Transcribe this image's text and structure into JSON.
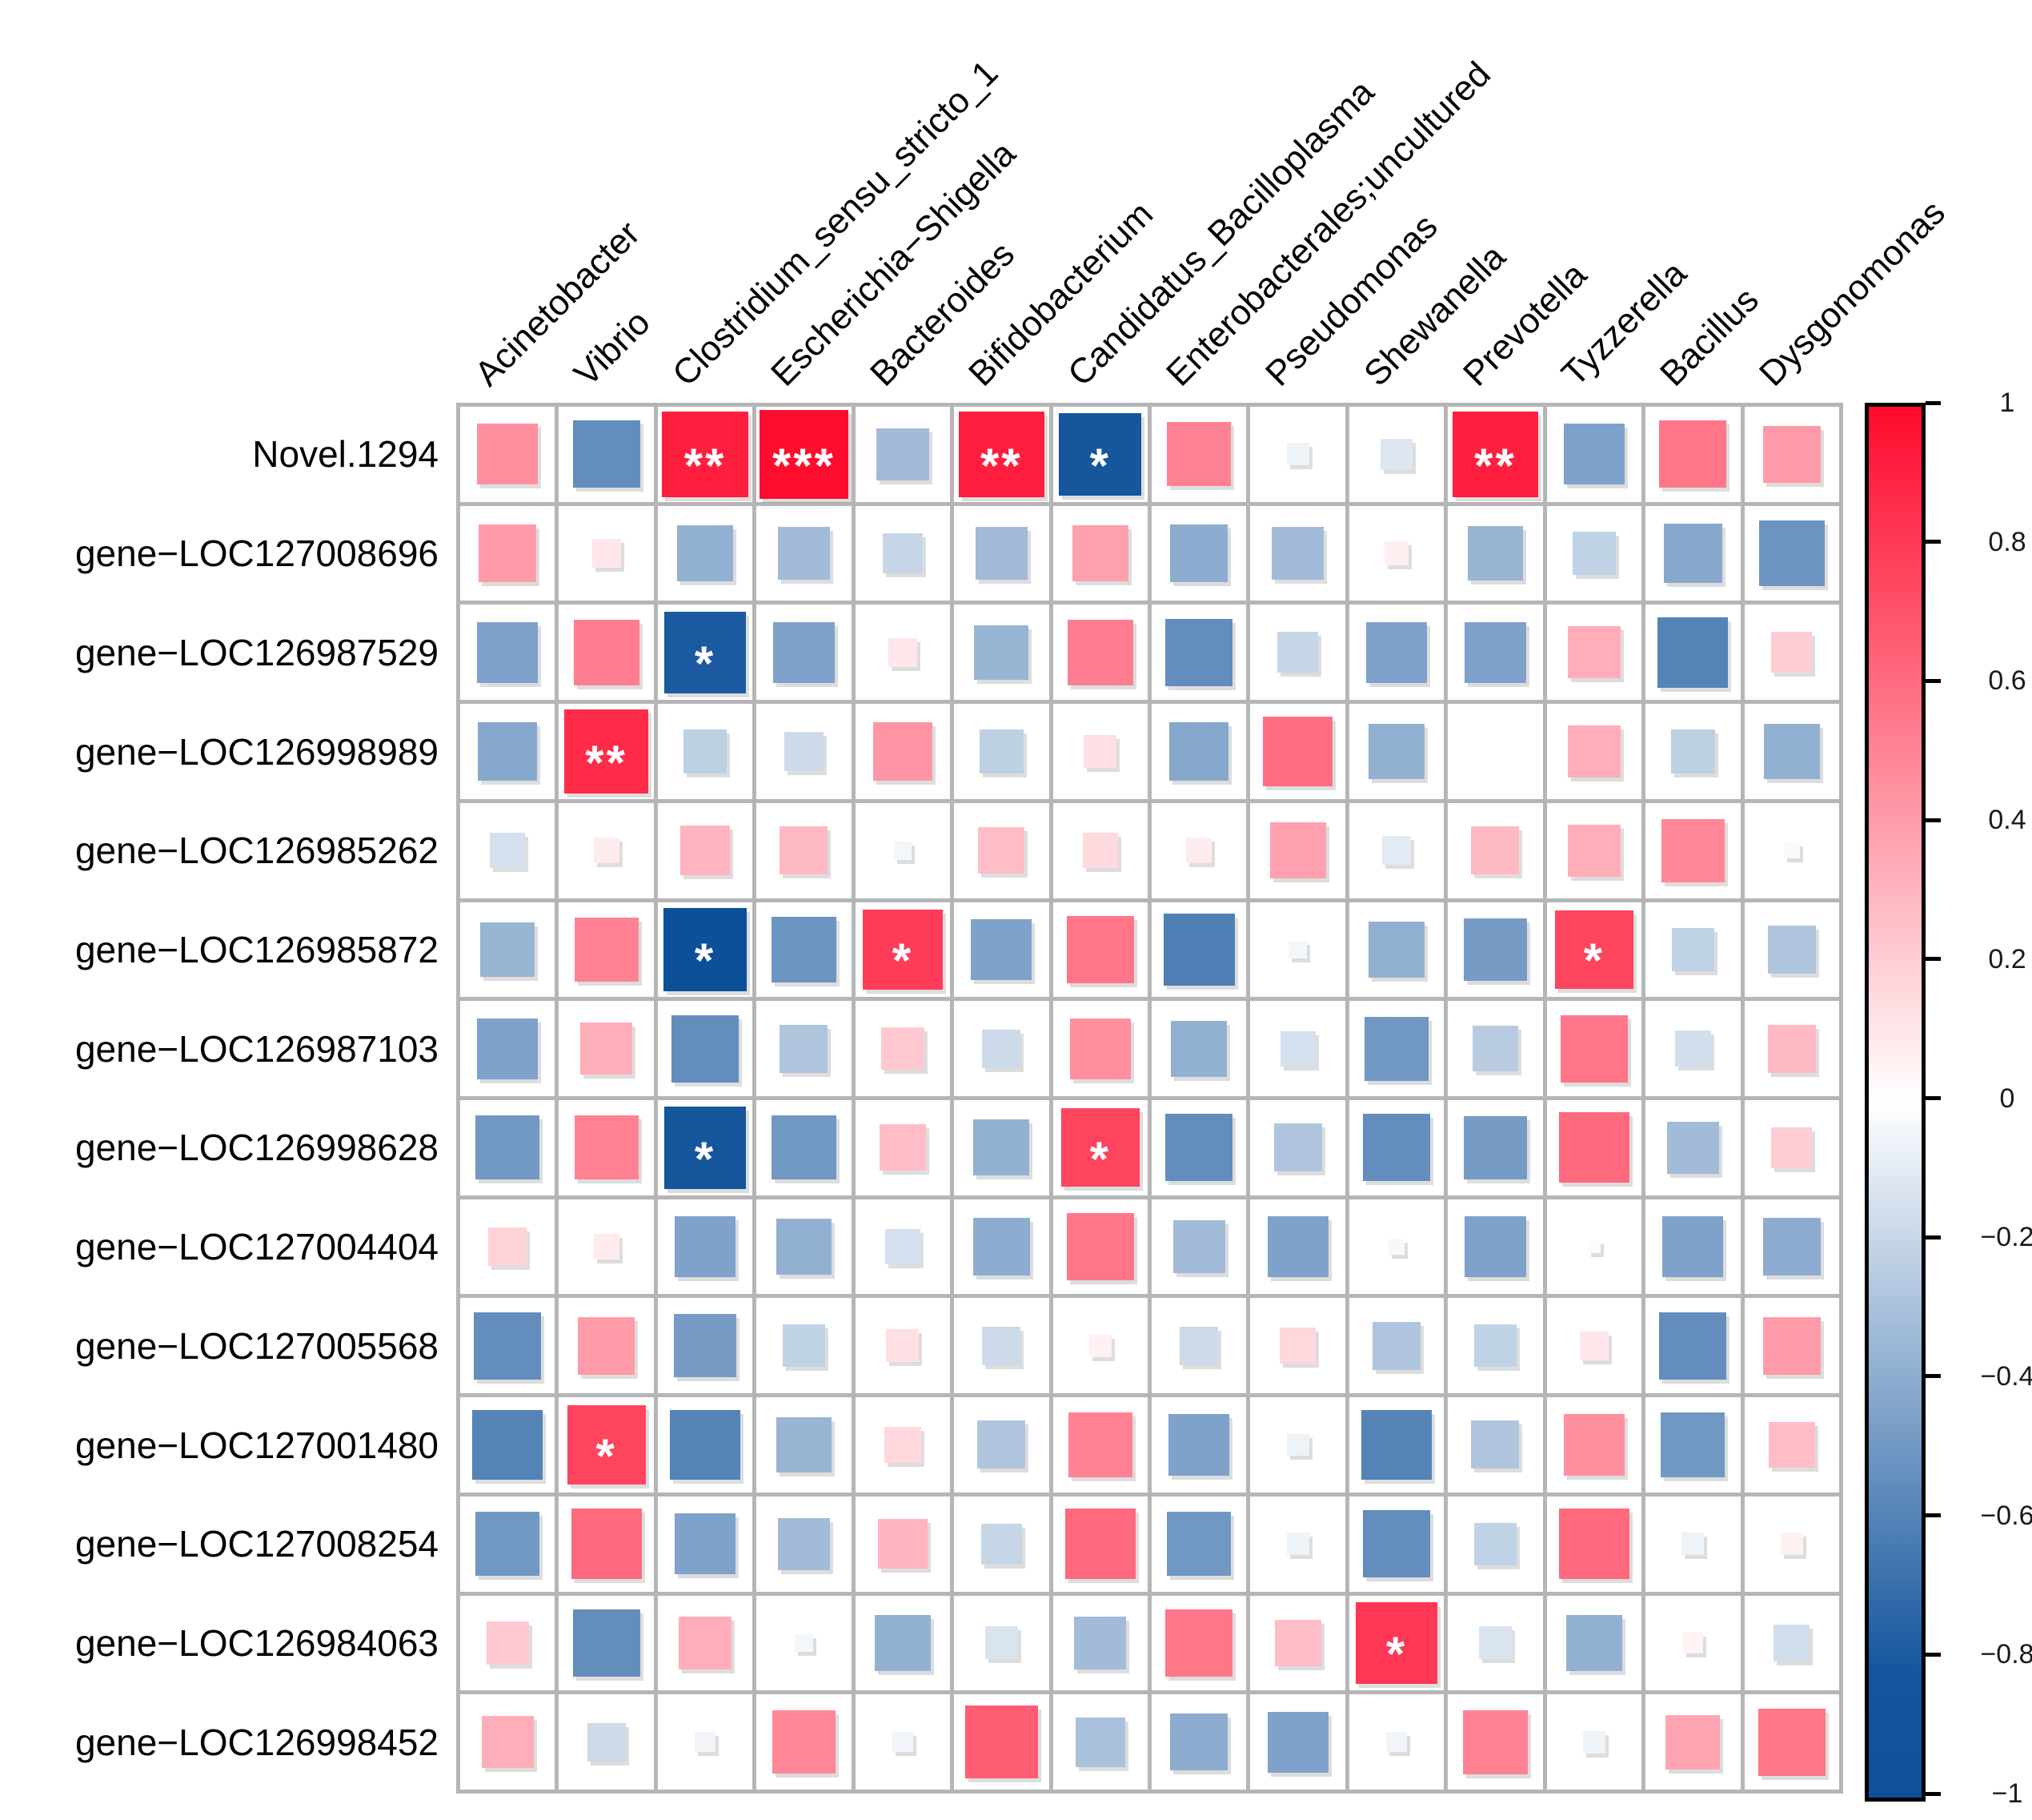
{
  "chart_data": {
    "type": "heatmap",
    "description": "Correlation matrix plot (corrplot square style): square size and color encode Spearman/Pearson correlation between genes (rows) and bacterial genera (columns); asterisks mark significance.",
    "rows": [
      "Novel.1294",
      "gene−LOC127008696",
      "gene−LOC126987529",
      "gene−LOC126998989",
      "gene−LOC126985262",
      "gene−LOC126985872",
      "gene−LOC126987103",
      "gene−LOC126998628",
      "gene−LOC127004404",
      "gene−LOC127005568",
      "gene−LOC127001480",
      "gene−LOC127008254",
      "gene−LOC126984063",
      "gene−LOC126998452"
    ],
    "columns": [
      "Acinetobacter",
      "Vibrio",
      "Clostridium_sensu_stricto_1",
      "Escherichia−Shigella",
      "Bacteroides",
      "Bifidobacterium",
      "Candidatus_Bacilloplasma",
      "Enterobacterales;uncultured",
      "Pseudomonas",
      "Shewanella",
      "Prevotella",
      "Tyzzerella",
      "Bacillus",
      "Dysgonomonas"
    ],
    "values": [
      [
        0.45,
        -0.55,
        0.9,
        0.97,
        -0.33,
        0.9,
        -0.82,
        0.5,
        -0.06,
        -0.12,
        0.9,
        -0.45,
        0.55,
        0.4
      ],
      [
        0.4,
        0.1,
        -0.38,
        -0.33,
        -0.2,
        -0.33,
        0.38,
        -0.4,
        -0.33,
        0.07,
        -0.36,
        -0.22,
        -0.42,
        -0.52
      ],
      [
        -0.45,
        0.52,
        -0.8,
        -0.45,
        0.1,
        -0.36,
        0.52,
        -0.55,
        -0.2,
        -0.45,
        -0.45,
        0.33,
        -0.6,
        0.2
      ],
      [
        -0.42,
        0.85,
        -0.23,
        -0.18,
        0.42,
        -0.23,
        0.13,
        -0.42,
        0.58,
        -0.38,
        0.0,
        0.33,
        -0.23,
        -0.38
      ],
      [
        -0.15,
        0.08,
        0.3,
        0.28,
        -0.04,
        0.26,
        0.15,
        0.08,
        0.38,
        -0.1,
        0.28,
        0.33,
        0.48,
        0.03
      ],
      [
        -0.36,
        0.5,
        -0.85,
        -0.52,
        0.78,
        -0.45,
        0.55,
        -0.62,
        -0.04,
        -0.38,
        -0.48,
        0.75,
        -0.22,
        -0.28
      ],
      [
        -0.45,
        0.33,
        -0.55,
        -0.28,
        0.22,
        -0.18,
        0.45,
        -0.38,
        -0.15,
        -0.5,
        -0.25,
        0.55,
        -0.16,
        0.28
      ],
      [
        -0.5,
        0.5,
        -0.82,
        -0.5,
        0.26,
        -0.38,
        0.75,
        -0.55,
        -0.28,
        -0.55,
        -0.48,
        0.6,
        -0.33,
        0.2
      ],
      [
        0.18,
        0.08,
        -0.45,
        -0.38,
        -0.15,
        -0.4,
        0.55,
        -0.33,
        -0.45,
        -0.03,
        -0.45,
        -0.02,
        -0.45,
        -0.4
      ],
      [
        -0.55,
        0.4,
        -0.48,
        -0.22,
        0.13,
        -0.18,
        0.06,
        -0.18,
        0.16,
        -0.28,
        -0.22,
        0.1,
        -0.55,
        0.4
      ],
      [
        -0.6,
        0.75,
        -0.6,
        -0.36,
        0.16,
        -0.28,
        0.5,
        -0.45,
        -0.06,
        -0.6,
        -0.28,
        0.45,
        -0.5,
        0.26
      ],
      [
        -0.5,
        0.6,
        -0.45,
        -0.33,
        0.3,
        -0.2,
        0.6,
        -0.5,
        -0.06,
        -0.55,
        -0.22,
        0.6,
        -0.06,
        0.06
      ],
      [
        0.22,
        -0.55,
        0.33,
        -0.04,
        -0.38,
        -0.13,
        -0.33,
        0.55,
        0.26,
        0.8,
        -0.13,
        -0.38,
        0.05,
        -0.16
      ],
      [
        0.33,
        -0.18,
        -0.05,
        0.48,
        -0.05,
        0.65,
        -0.3,
        -0.4,
        -0.45,
        -0.05,
        0.5,
        -0.06,
        0.36,
        0.55
      ]
    ],
    "significance": [
      [
        "",
        "",
        "**",
        "***",
        "",
        "**",
        "*",
        "",
        "",
        "",
        "**",
        "",
        "",
        ""
      ],
      [
        "",
        "",
        "",
        "",
        "",
        "",
        "",
        "",
        "",
        "",
        "",
        "",
        "",
        ""
      ],
      [
        "",
        "",
        "*",
        "",
        "",
        "",
        "",
        "",
        "",
        "",
        "",
        "",
        "",
        ""
      ],
      [
        "",
        "**",
        "",
        "",
        "",
        "",
        "",
        "",
        "",
        "",
        "",
        "",
        "",
        ""
      ],
      [
        "",
        "",
        "",
        "",
        "",
        "",
        "",
        "",
        "",
        "",
        "",
        "",
        "",
        ""
      ],
      [
        "",
        "",
        "*",
        "",
        "*",
        "",
        "",
        "",
        "",
        "",
        "",
        "*",
        "",
        ""
      ],
      [
        "",
        "",
        "",
        "",
        "",
        "",
        "",
        "",
        "",
        "",
        "",
        "",
        "",
        ""
      ],
      [
        "",
        "",
        "*",
        "",
        "",
        "",
        "*",
        "",
        "",
        "",
        "",
        "",
        "",
        ""
      ],
      [
        "",
        "",
        "",
        "",
        "",
        "",
        "",
        "",
        "",
        "",
        "",
        "",
        "",
        ""
      ],
      [
        "",
        "",
        "",
        "",
        "",
        "",
        "",
        "",
        "",
        "",
        "",
        "",
        "",
        ""
      ],
      [
        "",
        "*",
        "",
        "",
        "",
        "",
        "",
        "",
        "",
        "",
        "",
        "",
        "",
        ""
      ],
      [
        "",
        "",
        "",
        "",
        "",
        "",
        "",
        "",
        "",
        "",
        "",
        "",
        "",
        ""
      ],
      [
        "",
        "",
        "",
        "",
        "",
        "",
        "",
        "",
        "",
        "*",
        "",
        "",
        "",
        ""
      ],
      [
        "",
        "",
        "",
        "",
        "",
        "",
        "",
        "",
        "",
        "",
        "",
        "",
        "",
        ""
      ]
    ],
    "value_range": [
      -1,
      1
    ],
    "grid_on": true,
    "legend_position": "right",
    "colorbar": {
      "ticks": [
        "1",
        "0.8",
        "0.6",
        "0.4",
        "0.2",
        "0",
        "−0.2",
        "−0.4",
        "−0.6",
        "−0.8",
        "−1"
      ],
      "tick_values": [
        1,
        0.8,
        0.6,
        0.4,
        0.2,
        0,
        -0.2,
        -0.4,
        -0.6,
        -0.8,
        -1
      ],
      "positive_color": "#FF0A2D",
      "zero_color": "#FFFFFF",
      "negative_color": "#0D509A"
    },
    "star_color": "#FFFFFF",
    "grid_line_color": "#B5B5B5"
  }
}
